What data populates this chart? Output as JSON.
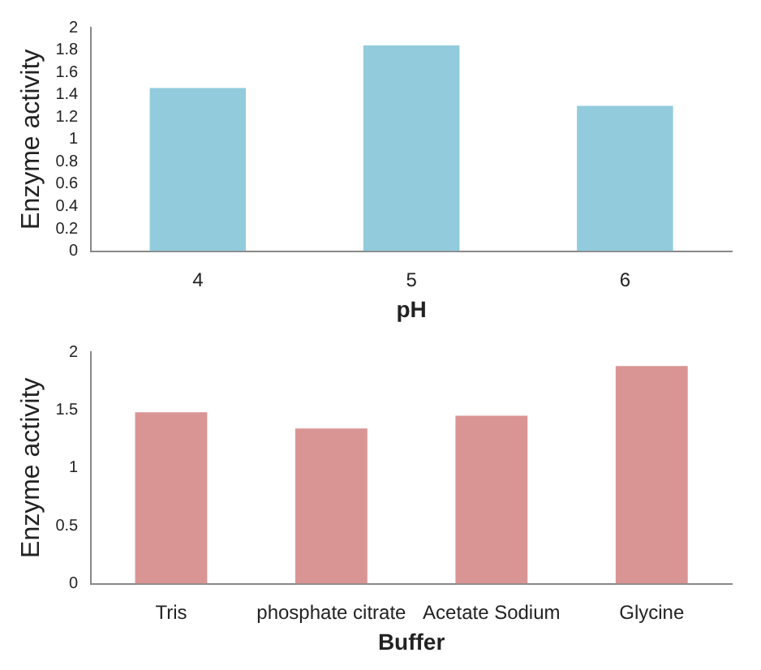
{
  "chart_data": [
    {
      "type": "bar",
      "xlabel": "pH",
      "ylabel": "Enzyme activity",
      "categories": [
        "4",
        "5",
        "6"
      ],
      "values": [
        1.46,
        1.84,
        1.3
      ],
      "color": "#92cbdc",
      "ylim": [
        0,
        2
      ],
      "yticks": [
        0,
        0.2,
        0.4,
        0.6,
        0.8,
        1,
        1.2,
        1.4,
        1.6,
        1.8,
        2
      ],
      "grid": false,
      "legend": false
    },
    {
      "type": "bar",
      "xlabel": "Buffer",
      "ylabel": "Enzyme activity",
      "categories": [
        "Tris",
        "phosphate citrate",
        "Acetate Sodium",
        "Glycine"
      ],
      "values": [
        1.48,
        1.34,
        1.45,
        1.88
      ],
      "color": "#d99594",
      "ylim": [
        0,
        2
      ],
      "yticks": [
        0,
        0.5,
        1,
        1.5,
        2
      ],
      "grid": false,
      "legend": false
    }
  ]
}
